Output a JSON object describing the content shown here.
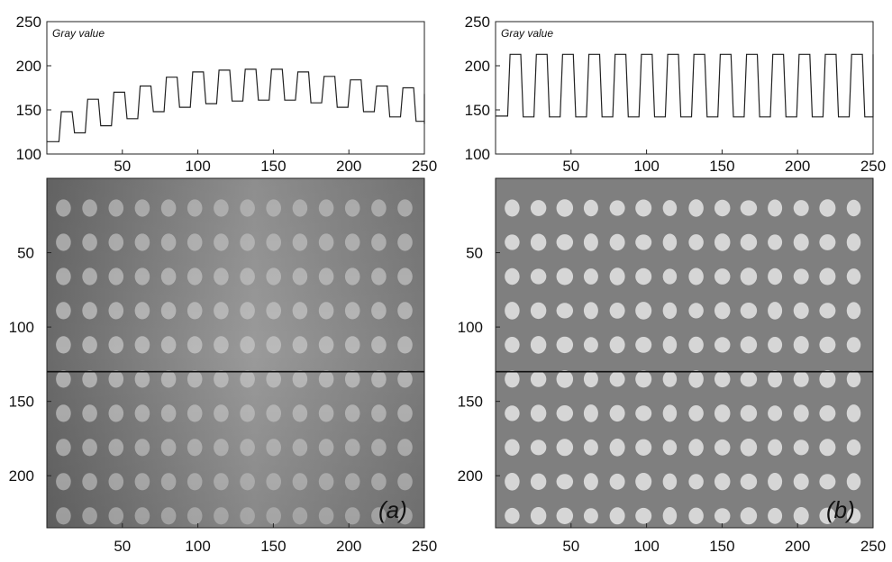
{
  "chart_data": [
    {
      "type": "line",
      "panel": "a-profile",
      "title": "Gray value",
      "xlim": [
        0,
        250
      ],
      "ylim": [
        100,
        250
      ],
      "xticks": [
        50,
        100,
        150,
        200,
        250
      ],
      "yticks": [
        100,
        150,
        200,
        250
      ],
      "period": 17.4,
      "x0": 8,
      "peaks": [
        148,
        162,
        170,
        177,
        187,
        193,
        195,
        196,
        196,
        193,
        188,
        184,
        177,
        175,
        168
      ],
      "valleys": [
        114,
        124,
        132,
        140,
        148,
        153,
        157,
        160,
        161,
        161,
        158,
        153,
        148,
        142,
        137,
        134
      ]
    },
    {
      "type": "line",
      "panel": "b-profile",
      "title": "Gray value",
      "xlim": [
        0,
        250
      ],
      "ylim": [
        100,
        250
      ],
      "xticks": [
        50,
        100,
        150,
        200,
        250
      ],
      "yticks": [
        100,
        150,
        200,
        250
      ],
      "period": 17.4,
      "x0": 8,
      "peaks": [
        213,
        213,
        213,
        213,
        213,
        213,
        213,
        213,
        213,
        213,
        213,
        213,
        213,
        213,
        213
      ],
      "valleys": [
        143,
        142,
        142,
        142,
        142,
        142,
        142,
        142,
        142,
        142,
        142,
        142,
        142,
        142,
        142,
        142
      ]
    },
    {
      "type": "heatmap",
      "panel": "a-image",
      "label": "(a)",
      "xlim": [
        0,
        250
      ],
      "ylim": [
        0,
        235
      ],
      "xticks": [
        50,
        100,
        150,
        200,
        250
      ],
      "yticks": [
        50,
        100,
        150,
        200
      ],
      "dot_cols": [
        11,
        28.4,
        45.8,
        63.2,
        80.6,
        98,
        115.4,
        132.8,
        150.2,
        167.6,
        185,
        202.4,
        219.8,
        237.2
      ],
      "dot_rows": [
        20,
        43,
        66,
        89,
        112,
        135,
        158,
        181,
        204,
        227
      ],
      "line_y": 130,
      "colors": {
        "background": "#8c8c8c",
        "dot": "#c4c4c4",
        "line": "#111111"
      }
    },
    {
      "type": "heatmap",
      "panel": "b-image",
      "label": "(b)",
      "xlim": [
        0,
        250
      ],
      "ylim": [
        0,
        235
      ],
      "xticks": [
        50,
        100,
        150,
        200,
        250
      ],
      "yticks": [
        50,
        100,
        150,
        200
      ],
      "dot_cols": [
        11,
        28.4,
        45.8,
        63.2,
        80.6,
        98,
        115.4,
        132.8,
        150.2,
        167.6,
        185,
        202.4,
        219.8,
        237.2
      ],
      "dot_rows": [
        20,
        43,
        66,
        89,
        112,
        135,
        158,
        181,
        204,
        227
      ],
      "line_y": 130,
      "colors": {
        "background": "#7f7f7f",
        "dot": "#d6d6d6",
        "line": "#111111"
      }
    }
  ]
}
